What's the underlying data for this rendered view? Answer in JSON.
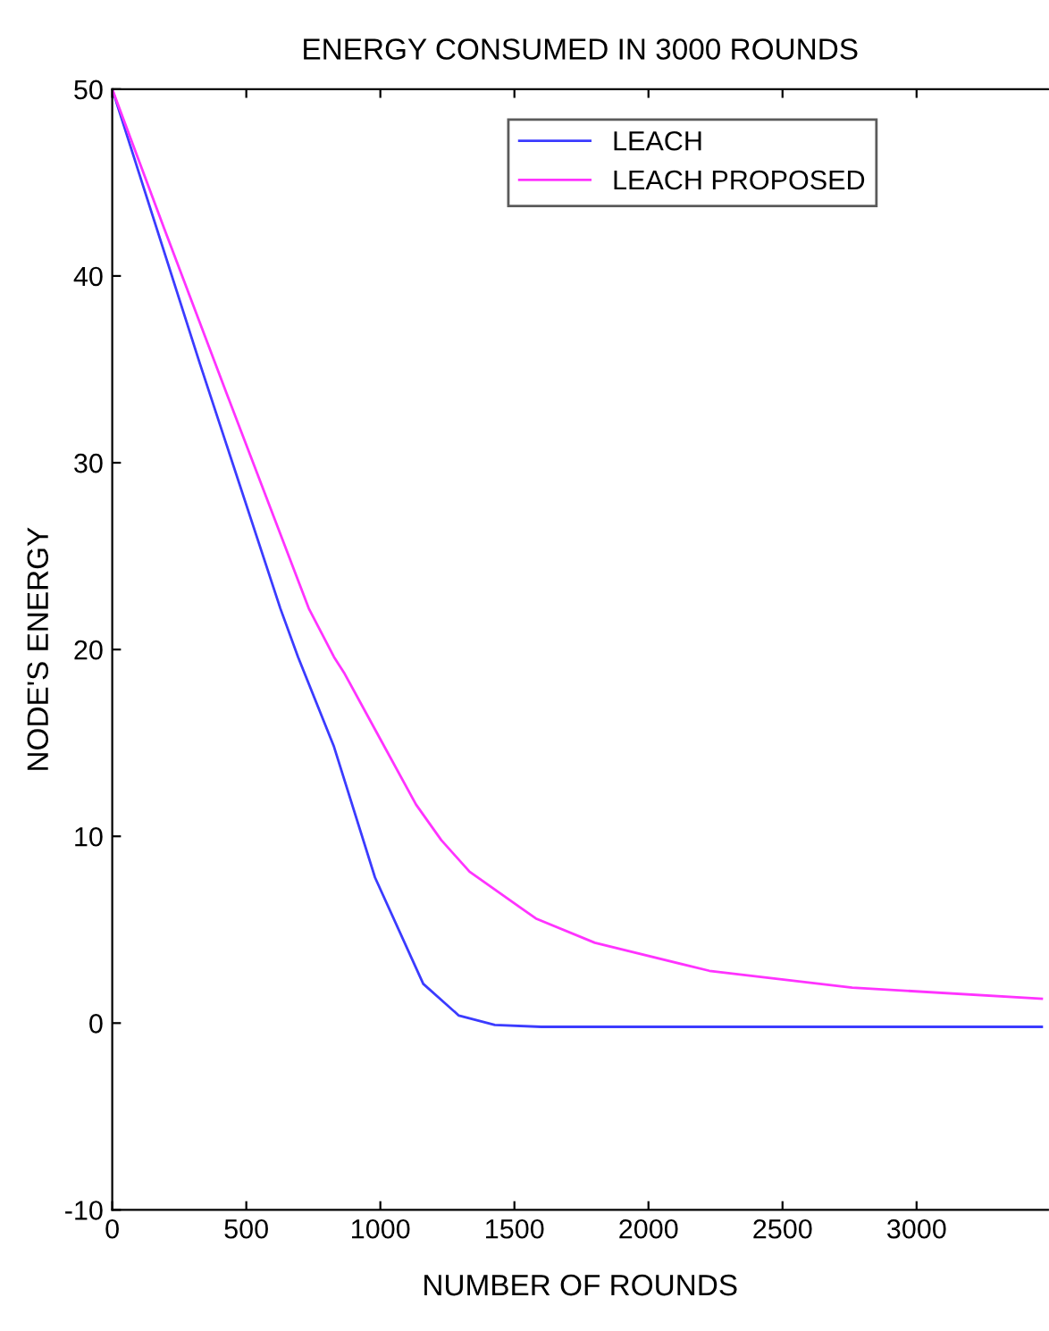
{
  "chart_data": {
    "type": "line",
    "title": "ENERGY CONSUMED IN 3000 ROUNDS",
    "xlabel": "NUMBER OF ROUNDS",
    "ylabel": "NODE'S ENERGY",
    "xlim": [
      0,
      3490
    ],
    "ylim": [
      -10,
      50
    ],
    "xticks": [
      0,
      500,
      1000,
      1500,
      2000,
      2500,
      3000
    ],
    "yticks": [
      -10,
      0,
      10,
      20,
      30,
      40,
      50
    ],
    "grid": false,
    "legend": "top",
    "marker": "none",
    "line_style": "solid",
    "series": [
      {
        "name": "LEACH",
        "color": "#3b3bff",
        "x": [
          0,
          327,
          627,
          693,
          827,
          980,
          1160,
          1293,
          1427,
          1600,
          2000,
          3000,
          3467
        ],
        "values": [
          50,
          35.3,
          22.2,
          19.6,
          14.8,
          7.8,
          2.1,
          0.4,
          -0.1,
          -0.2,
          -0.2,
          -0.2,
          -0.2
        ]
      },
      {
        "name": "LEACH PROPOSED",
        "color": "#ff33ff",
        "x": [
          0,
          200,
          427,
          733,
          827,
          867,
          1000,
          1133,
          1227,
          1333,
          1580,
          1800,
          2227,
          2760,
          3467
        ],
        "values": [
          50,
          42.3,
          33.7,
          22.2,
          19.6,
          18.7,
          15.2,
          11.7,
          9.8,
          8.1,
          5.6,
          4.3,
          2.8,
          1.9,
          1.3
        ]
      }
    ]
  }
}
